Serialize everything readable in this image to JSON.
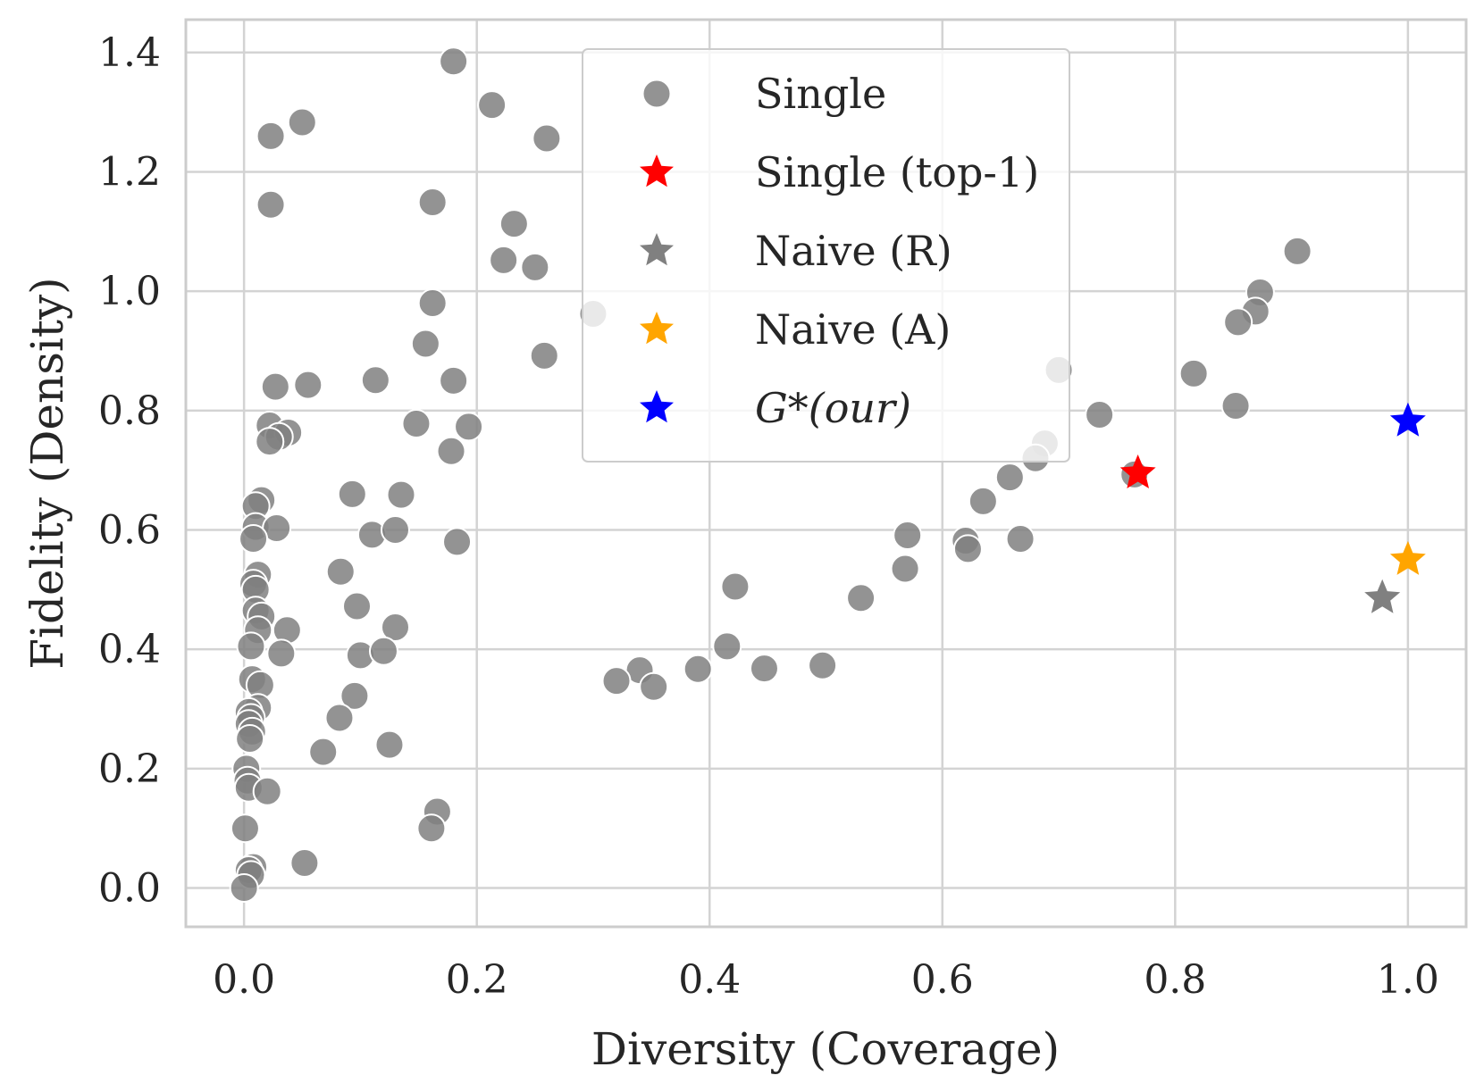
{
  "chart_data": {
    "type": "scatter",
    "xlabel": "Diversity (Coverage)",
    "ylabel": "Fidelity (Density)",
    "xlim": [
      -0.05,
      1.05
    ],
    "ylim": [
      -0.065,
      1.455
    ],
    "xticks": [
      "0.0",
      "0.2",
      "0.4",
      "0.6",
      "0.8",
      "1.0"
    ],
    "yticks": [
      "0.0",
      "0.2",
      "0.4",
      "0.6",
      "0.8",
      "1.0",
      "1.2",
      "1.4"
    ],
    "grid": true,
    "legend_position": "top-center",
    "series": [
      {
        "name": "Single",
        "marker": "circle",
        "color": "#808080",
        "points": [
          [
            0.18,
            1.385
          ],
          [
            0.213,
            1.312
          ],
          [
            0.05,
            1.283
          ],
          [
            0.023,
            1.26
          ],
          [
            0.26,
            1.256
          ],
          [
            0.023,
            1.145
          ],
          [
            0.162,
            1.149
          ],
          [
            0.232,
            1.113
          ],
          [
            0.223,
            1.052
          ],
          [
            0.25,
            1.04
          ],
          [
            0.905,
            1.067
          ],
          [
            0.873,
            0.998
          ],
          [
            0.869,
            0.966
          ],
          [
            0.854,
            0.948
          ],
          [
            0.3,
            0.962
          ],
          [
            0.162,
            0.98
          ],
          [
            0.156,
            0.912
          ],
          [
            0.258,
            0.892
          ],
          [
            0.7,
            0.868
          ],
          [
            0.816,
            0.862
          ],
          [
            0.852,
            0.808
          ],
          [
            0.735,
            0.793
          ],
          [
            0.027,
            0.84
          ],
          [
            0.055,
            0.843
          ],
          [
            0.113,
            0.851
          ],
          [
            0.18,
            0.85
          ],
          [
            0.148,
            0.778
          ],
          [
            0.193,
            0.773
          ],
          [
            0.022,
            0.775
          ],
          [
            0.038,
            0.763
          ],
          [
            0.03,
            0.756
          ],
          [
            0.022,
            0.748
          ],
          [
            0.178,
            0.732
          ],
          [
            0.688,
            0.745
          ],
          [
            0.68,
            0.72
          ],
          [
            0.658,
            0.688
          ],
          [
            0.635,
            0.648
          ],
          [
            0.765,
            0.693
          ],
          [
            0.093,
            0.66
          ],
          [
            0.135,
            0.659
          ],
          [
            0.015,
            0.65
          ],
          [
            0.01,
            0.64
          ],
          [
            0.01,
            0.605
          ],
          [
            0.028,
            0.603
          ],
          [
            0.008,
            0.585
          ],
          [
            0.11,
            0.592
          ],
          [
            0.13,
            0.6
          ],
          [
            0.183,
            0.58
          ],
          [
            0.57,
            0.591
          ],
          [
            0.62,
            0.582
          ],
          [
            0.622,
            0.568
          ],
          [
            0.667,
            0.585
          ],
          [
            0.568,
            0.535
          ],
          [
            0.012,
            0.525
          ],
          [
            0.008,
            0.51
          ],
          [
            0.01,
            0.5
          ],
          [
            0.083,
            0.53
          ],
          [
            0.422,
            0.505
          ],
          [
            0.53,
            0.486
          ],
          [
            0.01,
            0.465
          ],
          [
            0.015,
            0.455
          ],
          [
            0.097,
            0.472
          ],
          [
            0.012,
            0.432
          ],
          [
            0.037,
            0.432
          ],
          [
            0.13,
            0.437
          ],
          [
            0.006,
            0.405
          ],
          [
            0.032,
            0.393
          ],
          [
            0.1,
            0.39
          ],
          [
            0.12,
            0.397
          ],
          [
            0.415,
            0.405
          ],
          [
            0.34,
            0.365
          ],
          [
            0.39,
            0.367
          ],
          [
            0.447,
            0.368
          ],
          [
            0.497,
            0.373
          ],
          [
            0.32,
            0.347
          ],
          [
            0.352,
            0.337
          ],
          [
            0.007,
            0.35
          ],
          [
            0.014,
            0.34
          ],
          [
            0.095,
            0.322
          ],
          [
            0.012,
            0.302
          ],
          [
            0.004,
            0.295
          ],
          [
            0.006,
            0.285
          ],
          [
            0.004,
            0.275
          ],
          [
            0.007,
            0.262
          ],
          [
            0.005,
            0.25
          ],
          [
            0.082,
            0.285
          ],
          [
            0.068,
            0.228
          ],
          [
            0.125,
            0.24
          ],
          [
            0.002,
            0.2
          ],
          [
            0.003,
            0.18
          ],
          [
            0.004,
            0.168
          ],
          [
            0.02,
            0.162
          ],
          [
            0.166,
            0.128
          ],
          [
            0.161,
            0.1
          ],
          [
            0.001,
            0.1
          ],
          [
            0.052,
            0.042
          ],
          [
            0.008,
            0.035
          ],
          [
            0.004,
            0.03
          ],
          [
            0.006,
            0.022
          ],
          [
            0.0,
            0.0
          ]
        ]
      },
      {
        "name": "Single (top-1)",
        "marker": "star",
        "color": "#ff0000",
        "points": [
          [
            0.768,
            0.695
          ]
        ]
      },
      {
        "name": "Naive (R)",
        "marker": "star",
        "color": "#808080",
        "points": [
          [
            0.978,
            0.486
          ]
        ]
      },
      {
        "name": "Naive (A)",
        "marker": "star",
        "color": "#ffa500",
        "points": [
          [
            1.0,
            0.55
          ]
        ]
      },
      {
        "name": "G*(our)",
        "marker": "star",
        "color": "#0000ff",
        "points": [
          [
            1.0,
            0.782
          ]
        ]
      }
    ]
  }
}
